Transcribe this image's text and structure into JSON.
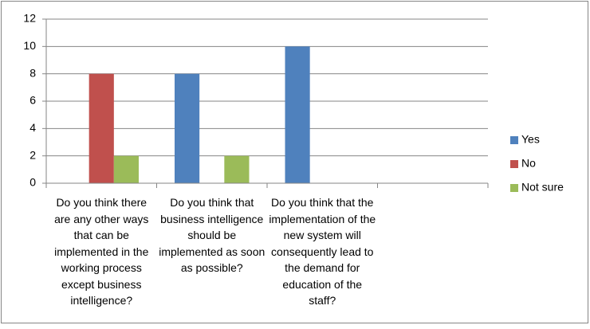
{
  "chart_data": {
    "type": "bar",
    "categories": [
      "Do you think there are any other ways that can be implemented in the working process except business intelligence?",
      "Do you think that business intelligence should be implemented as soon as possible?",
      "Do you think that the implementation of the new system will consequently lead to the demand for education of the staff?",
      null
    ],
    "series": [
      {
        "name": "Yes",
        "color": "#4f81bd",
        "values": [
          0,
          8,
          10,
          null
        ]
      },
      {
        "name": "No",
        "color": "#c0504d",
        "values": [
          8,
          0,
          0,
          null
        ]
      },
      {
        "name": "Not sure",
        "color": "#9bbb59",
        "values": [
          2,
          2,
          0,
          null
        ]
      }
    ],
    "ylim": [
      0,
      12
    ],
    "yticks": [
      0,
      2,
      4,
      6,
      8,
      10,
      12
    ],
    "grid": true,
    "legend": "right"
  }
}
